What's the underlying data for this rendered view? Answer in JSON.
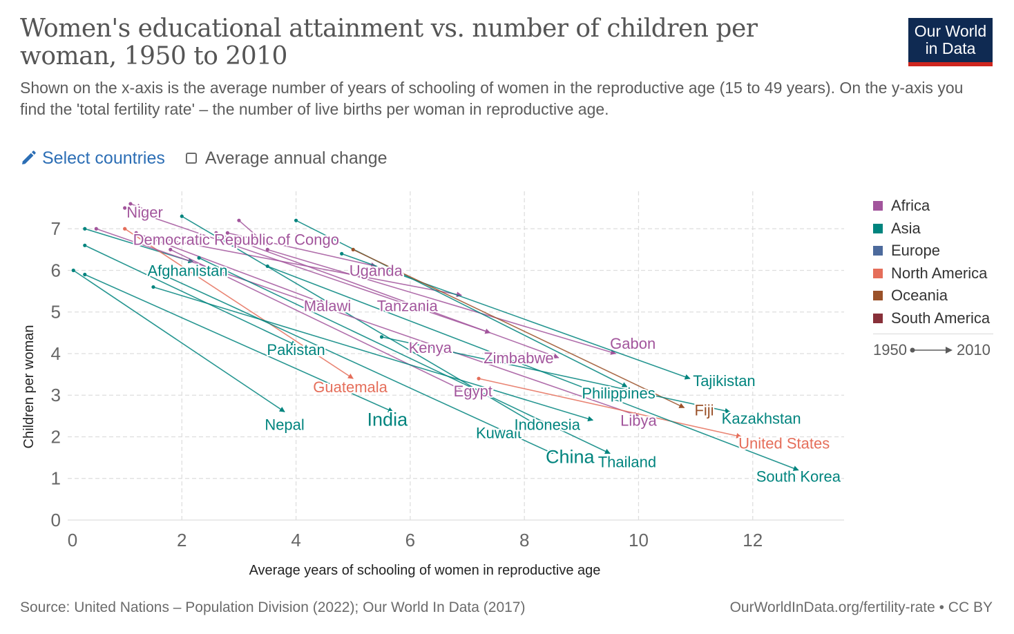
{
  "header": {
    "title": "Women's educational attainment vs. number of children per woman, 1950 to 2010",
    "subtitle": "Shown on the x-axis is the average number of years of schooling of women in the reproductive age (15 to 49 years). On the y-axis you find the 'total fertility rate' – the number of live births per woman in reproductive age.",
    "logo_line1": "Our World",
    "logo_line2": "in Data"
  },
  "controls": {
    "select_label": "Select countries",
    "select_icon": "pencil-icon",
    "avg_label": "Average annual change",
    "avg_checked": false
  },
  "legend": {
    "items": [
      {
        "label": "Africa",
        "color": "#a2559c"
      },
      {
        "label": "Asia",
        "color": "#00847e"
      },
      {
        "label": "Europe",
        "color": "#4c6a9c"
      },
      {
        "label": "North America",
        "color": "#e56e5a"
      },
      {
        "label": "Oceania",
        "color": "#9a5129"
      },
      {
        "label": "South America",
        "color": "#883039"
      }
    ],
    "time_start": "1950",
    "time_end": "2010"
  },
  "footer": {
    "source": "Source: United Nations – Population Division (2022); Our World In Data (2017)",
    "license": "OurWorldInData.org/fertility-rate • CC BY"
  },
  "chart_data": {
    "type": "scatter",
    "connected": true,
    "xlabel": "Average years of schooling of women in reproductive age",
    "ylabel": "Children per woman",
    "xlim": [
      0,
      13.6
    ],
    "ylim": [
      0,
      7.9
    ],
    "xticks": [
      0,
      2,
      4,
      6,
      8,
      10,
      12
    ],
    "yticks": [
      0,
      1,
      2,
      3,
      4,
      5,
      6,
      7
    ],
    "grid": true,
    "legend_position": "right",
    "series": [
      {
        "name": "Niger",
        "region": "Africa",
        "start": [
          1.1,
          7.6
        ],
        "end": [
          1.3,
          7.5
        ],
        "label_at": [
          1.35,
          7.4
        ]
      },
      {
        "name": "Democratic Republic of Congo",
        "region": "Africa",
        "start": [
          3.0,
          7.2
        ],
        "end": [
          3.5,
          6.6
        ],
        "label_at": [
          2.95,
          6.75
        ]
      },
      {
        "name": "Uganda",
        "region": "Africa",
        "start": [
          2.8,
          6.9
        ],
        "end": [
          5.4,
          6.1
        ],
        "label_at": [
          5.4,
          6.0
        ]
      },
      {
        "name": "Afghanistan",
        "region": "Asia",
        "start": [
          0.3,
          7.0
        ],
        "end": [
          2.2,
          6.2
        ],
        "label_at": [
          2.1,
          6.0
        ]
      },
      {
        "name": "Malawi",
        "region": "Africa",
        "start": [
          1.2,
          6.9
        ],
        "end": [
          4.5,
          5.2
        ],
        "label_at": [
          4.55,
          5.15
        ]
      },
      {
        "name": "Tanzania",
        "region": "Africa",
        "start": [
          1.5,
          6.8
        ],
        "end": [
          6.9,
          5.4
        ],
        "label_at": [
          5.95,
          5.15
        ]
      },
      {
        "name": "Pakistan",
        "region": "Asia",
        "start": [
          0.3,
          6.6
        ],
        "end": [
          4.0,
          4.2
        ],
        "label_at": [
          4.0,
          4.1
        ]
      },
      {
        "name": "Kenya",
        "region": "Africa",
        "start": [
          1.0,
          7.5
        ],
        "end": [
          7.4,
          4.5
        ],
        "label_at": [
          6.35,
          4.15
        ]
      },
      {
        "name": "Gabon",
        "region": "Africa",
        "start": [
          3.5,
          6.5
        ],
        "end": [
          9.6,
          4.0
        ],
        "label_at": [
          9.9,
          4.25
        ]
      },
      {
        "name": "Zimbabwe",
        "region": "Africa",
        "start": [
          2.6,
          6.9
        ],
        "end": [
          8.6,
          3.9
        ],
        "label_at": [
          7.9,
          3.9
        ]
      },
      {
        "name": "Guatemala",
        "region": "North America",
        "start": [
          1.0,
          7.0
        ],
        "end": [
          5.0,
          3.4
        ],
        "label_at": [
          4.95,
          3.2
        ]
      },
      {
        "name": "Egypt",
        "region": "Africa",
        "start": [
          1.8,
          6.5
        ],
        "end": [
          7.1,
          3.0
        ],
        "label_at": [
          7.1,
          3.1
        ]
      },
      {
        "name": "India",
        "region": "Asia",
        "start": [
          0.3,
          5.9
        ],
        "end": [
          5.7,
          2.6
        ],
        "label_at": [
          5.6,
          2.4
        ]
      },
      {
        "name": "Nepal",
        "region": "Asia",
        "start": [
          0.1,
          6.0
        ],
        "end": [
          3.8,
          2.6
        ],
        "label_at": [
          3.8,
          2.3
        ]
      },
      {
        "name": "Kuwait",
        "region": "Asia",
        "start": [
          2.0,
          7.3
        ],
        "end": [
          8.2,
          2.3
        ],
        "label_at": [
          7.55,
          2.1
        ]
      },
      {
        "name": "Indonesia",
        "region": "Asia",
        "start": [
          1.5,
          5.6
        ],
        "end": [
          9.2,
          2.4
        ],
        "label_at": [
          8.4,
          2.3
        ]
      },
      {
        "name": "Philippines",
        "region": "Asia",
        "start": [
          4.0,
          7.2
        ],
        "end": [
          9.8,
          3.2
        ],
        "label_at": [
          9.65,
          3.05
        ]
      },
      {
        "name": "Libya",
        "region": "Africa",
        "start": [
          0.5,
          7.0
        ],
        "end": [
          10.0,
          2.5
        ],
        "label_at": [
          10.0,
          2.4
        ]
      },
      {
        "name": "China",
        "region": "Asia",
        "start": [
          1.5,
          6.0
        ],
        "end": [
          8.5,
          1.6
        ],
        "label_at": [
          8.8,
          1.5
        ]
      },
      {
        "name": "Thailand",
        "region": "Asia",
        "start": [
          2.3,
          6.3
        ],
        "end": [
          9.5,
          1.6
        ],
        "label_at": [
          9.8,
          1.4
        ]
      },
      {
        "name": "Tajikistan",
        "region": "Asia",
        "start": [
          4.8,
          6.4
        ],
        "end": [
          10.9,
          3.4
        ],
        "label_at": [
          11.5,
          3.35
        ]
      },
      {
        "name": "Fiji",
        "region": "Oceania",
        "start": [
          5.0,
          6.5
        ],
        "end": [
          10.8,
          2.7
        ],
        "label_at": [
          11.15,
          2.65
        ]
      },
      {
        "name": "Kazakhstan",
        "region": "Asia",
        "start": [
          5.5,
          4.4
        ],
        "end": [
          11.6,
          2.6
        ],
        "label_at": [
          12.15,
          2.45
        ]
      },
      {
        "name": "United States",
        "region": "North America",
        "start": [
          7.2,
          3.4
        ],
        "end": [
          11.8,
          2.0
        ],
        "label_at": [
          12.55,
          1.85
        ]
      },
      {
        "name": "South Korea",
        "region": "Asia",
        "start": [
          3.5,
          6.1
        ],
        "end": [
          12.8,
          1.2
        ],
        "label_at": [
          12.8,
          1.05
        ]
      }
    ]
  }
}
